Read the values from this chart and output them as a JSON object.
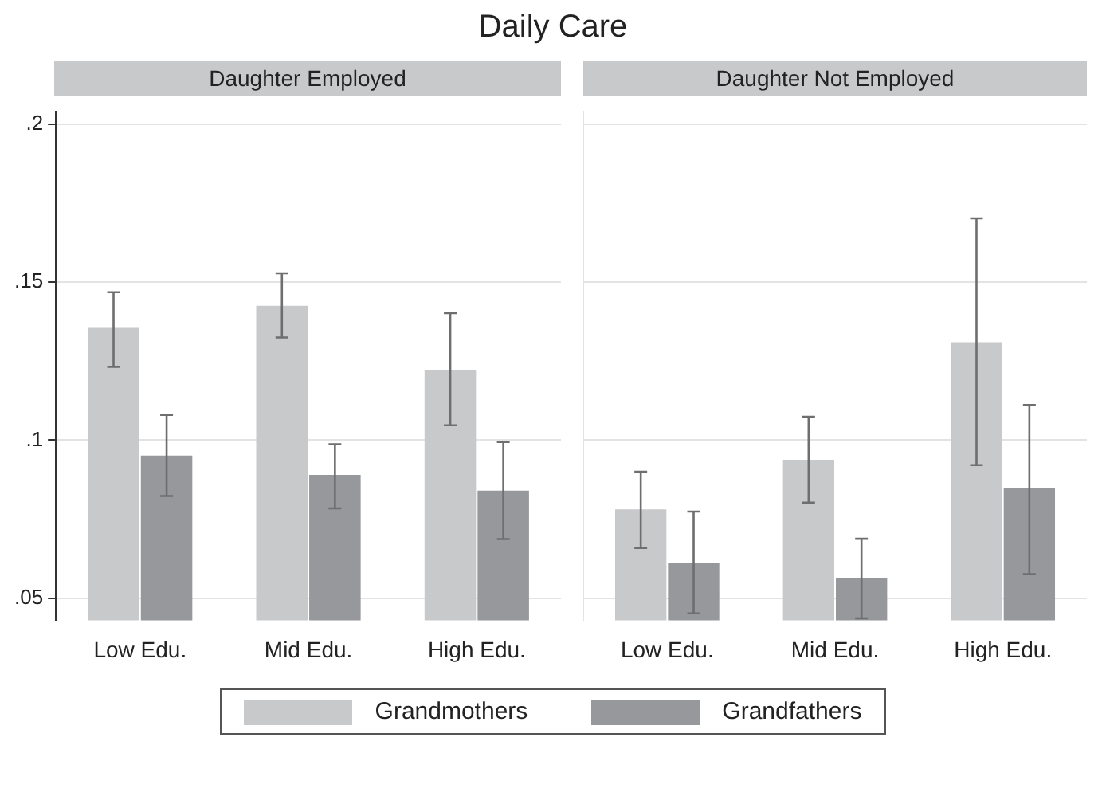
{
  "chart_data": [
    {
      "type": "bar",
      "title": "Daily Care",
      "subtitle": "Daughter Employed",
      "categories": [
        "Low Edu.",
        "Mid Edu.",
        "High Edu."
      ],
      "ylim": [
        0.043,
        0.204
      ],
      "yticks": [
        {
          "value": 0.05,
          "label": ".05"
        },
        {
          "value": 0.1,
          "label": ".1"
        },
        {
          "value": 0.15,
          "label": ".15"
        },
        {
          "value": 0.2,
          "label": ".2"
        }
      ],
      "grid": "y",
      "legend": "bottom",
      "series": [
        {
          "name": "Grandmothers",
          "color": "#c8c9cb",
          "values": [
            0.1355,
            0.1425,
            0.1223
          ],
          "errors": [
            [
              0.1232,
              0.1468
            ],
            [
              0.1325,
              0.1528
            ],
            [
              0.1047,
              0.1402
            ]
          ]
        },
        {
          "name": "Grandfathers",
          "color": "#97989b",
          "values": [
            0.0951,
            0.089,
            0.084
          ],
          "errors": [
            [
              0.0823,
              0.108
            ],
            [
              0.0784,
              0.0987
            ],
            [
              0.0687,
              0.0994
            ]
          ]
        }
      ]
    },
    {
      "type": "bar",
      "subtitle": "Daughter Not Employed",
      "categories": [
        "Low Edu.",
        "Mid Edu.",
        "High Edu."
      ],
      "ylim": [
        0.043,
        0.204
      ],
      "yticks": [
        {
          "value": 0.05,
          "label": null
        },
        {
          "value": 0.1,
          "label": null
        },
        {
          "value": 0.15,
          "label": null
        },
        {
          "value": 0.2,
          "label": null
        }
      ],
      "grid": "y",
      "tick_labels": "x",
      "series": [
        {
          "color": "#c8c9cb",
          "values": [
            0.0781,
            0.0938,
            0.131
          ],
          "errors": [
            [
              0.0659,
              0.09
            ],
            [
              0.0802,
              0.1074
            ],
            [
              0.0921,
              0.1702
            ]
          ]
        },
        {
          "color": "#97989b",
          "values": [
            0.0612,
            0.0562,
            0.0847
          ],
          "errors": [
            [
              0.0452,
              0.0774
            ],
            [
              0.0436,
              0.0688
            ],
            [
              0.0576,
              0.1111
            ]
          ]
        }
      ]
    }
  ]
}
